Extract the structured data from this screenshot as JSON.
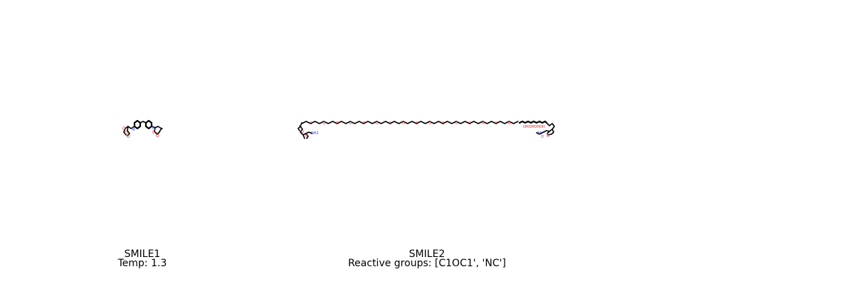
{
  "panels": [
    {
      "title": "SMILE1",
      "subtitle": "Temp: 1.3",
      "atom_labels": {
        "oxygen": "O",
        "nitrogen": "N"
      }
    },
    {
      "title": "SMILE2",
      "subtitle": "Reactive groups: [C1OC1', 'NC']",
      "atom_labels": {
        "oxygen": "O",
        "nitrogen": "N",
        "amine": "NH2",
        "amine_right": "NH",
        "ether_run": "OHOHOHOH"
      }
    }
  ],
  "colors": {
    "background": "#ffffff",
    "bond": "#000000",
    "oxygen": "#e0201a",
    "nitrogen": "#2a3bd6",
    "text": "#000000"
  }
}
